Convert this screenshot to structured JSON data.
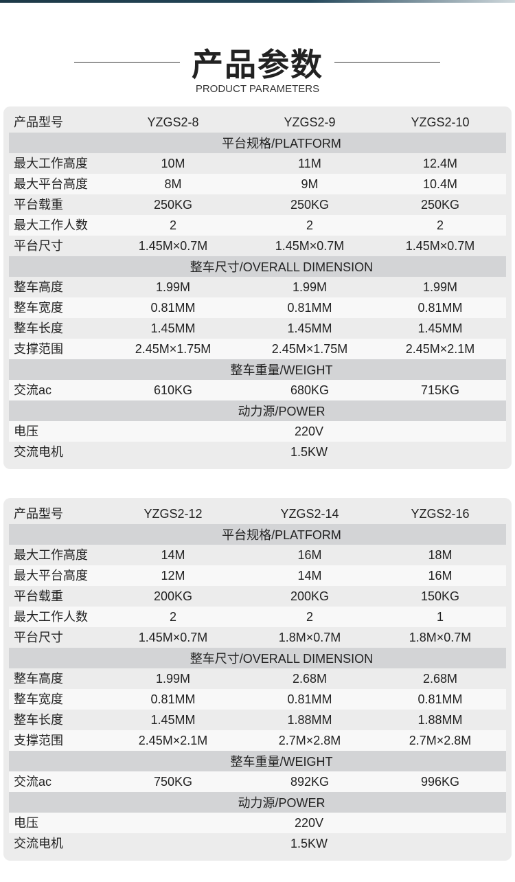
{
  "header": {
    "title": "产品参数",
    "subtitle": "PRODUCT PARAMETERS"
  },
  "tables": [
    {
      "model_label": "产品型号",
      "models": [
        "YZGS2-8",
        "YZGS2-9",
        "YZGS2-10"
      ],
      "sections": [
        {
          "title": "平台规格/PLATFORM",
          "rows": [
            {
              "label": "最大工作高度",
              "values": [
                "10M",
                "11M",
                "12.4M"
              ]
            },
            {
              "label": "最大平台高度",
              "values": [
                "8M",
                "9M",
                "10.4M"
              ]
            },
            {
              "label": "平台载重",
              "values": [
                "250KG",
                "250KG",
                "250KG"
              ]
            },
            {
              "label": "最大工作人数",
              "values": [
                "2",
                "2",
                "2"
              ]
            },
            {
              "label": "平台尺寸",
              "values": [
                "1.45M×0.7M",
                "1.45M×0.7M",
                "1.45M×0.7M"
              ]
            }
          ]
        },
        {
          "title": "整车尺寸/OVERALL  DIMENSION",
          "rows": [
            {
              "label": "整车高度",
              "values": [
                "1.99M",
                "1.99M",
                "1.99M"
              ]
            },
            {
              "label": "整车宽度",
              "values": [
                "0.81MM",
                "0.81MM",
                "0.81MM"
              ]
            },
            {
              "label": "整车长度",
              "values": [
                "1.45MM",
                "1.45MM",
                "1.45MM"
              ]
            },
            {
              "label": "支撑范围",
              "values": [
                "2.45M×1.75M",
                "2.45M×1.75M",
                "2.45M×2.1M"
              ]
            }
          ]
        },
        {
          "title": "整车重量/WEIGHT",
          "rows": [
            {
              "label": "交流ac",
              "values": [
                "610KG",
                "680KG",
                "715KG"
              ]
            }
          ]
        },
        {
          "title": "动力源/POWER",
          "rows": [
            {
              "label": "电压",
              "value": "220V"
            },
            {
              "label": "交流电机",
              "value": "1.5KW"
            }
          ]
        }
      ]
    },
    {
      "model_label": "产品型号",
      "models": [
        "YZGS2-12",
        "YZGS2-14",
        "YZGS2-16"
      ],
      "sections": [
        {
          "title": "平台规格/PLATFORM",
          "rows": [
            {
              "label": "最大工作高度",
              "values": [
                "14M",
                "16M",
                "18M"
              ]
            },
            {
              "label": "最大平台高度",
              "values": [
                "12M",
                "14M",
                "16M"
              ]
            },
            {
              "label": "平台载重",
              "values": [
                "200KG",
                "200KG",
                "150KG"
              ]
            },
            {
              "label": "最大工作人数",
              "values": [
                "2",
                "2",
                "1"
              ]
            },
            {
              "label": "平台尺寸",
              "values": [
                "1.45M×0.7M",
                "1.8M×0.7M",
                "1.8M×0.7M"
              ]
            }
          ]
        },
        {
          "title": "整车尺寸/OVERALL  DIMENSION",
          "rows": [
            {
              "label": "整车高度",
              "values": [
                "1.99M",
                "2.68M",
                "2.68M"
              ]
            },
            {
              "label": "整车宽度",
              "values": [
                "0.81MM",
                "0.81MM",
                "0.81MM"
              ]
            },
            {
              "label": "整车长度",
              "values": [
                "1.45MM",
                "1.88MM",
                "1.88MM"
              ]
            },
            {
              "label": "支撑范围",
              "values": [
                "2.45M×2.1M",
                "2.7M×2.8M",
                "2.7M×2.8M"
              ]
            }
          ]
        },
        {
          "title": "整车重量/WEIGHT",
          "rows": [
            {
              "label": "交流ac",
              "values": [
                "750KG",
                "892KG",
                "996KG"
              ]
            }
          ]
        },
        {
          "title": "动力源/POWER",
          "rows": [
            {
              "label": "电压",
              "value": "220V"
            },
            {
              "label": "交流电机",
              "value": "1.5KW"
            }
          ]
        }
      ]
    }
  ]
}
